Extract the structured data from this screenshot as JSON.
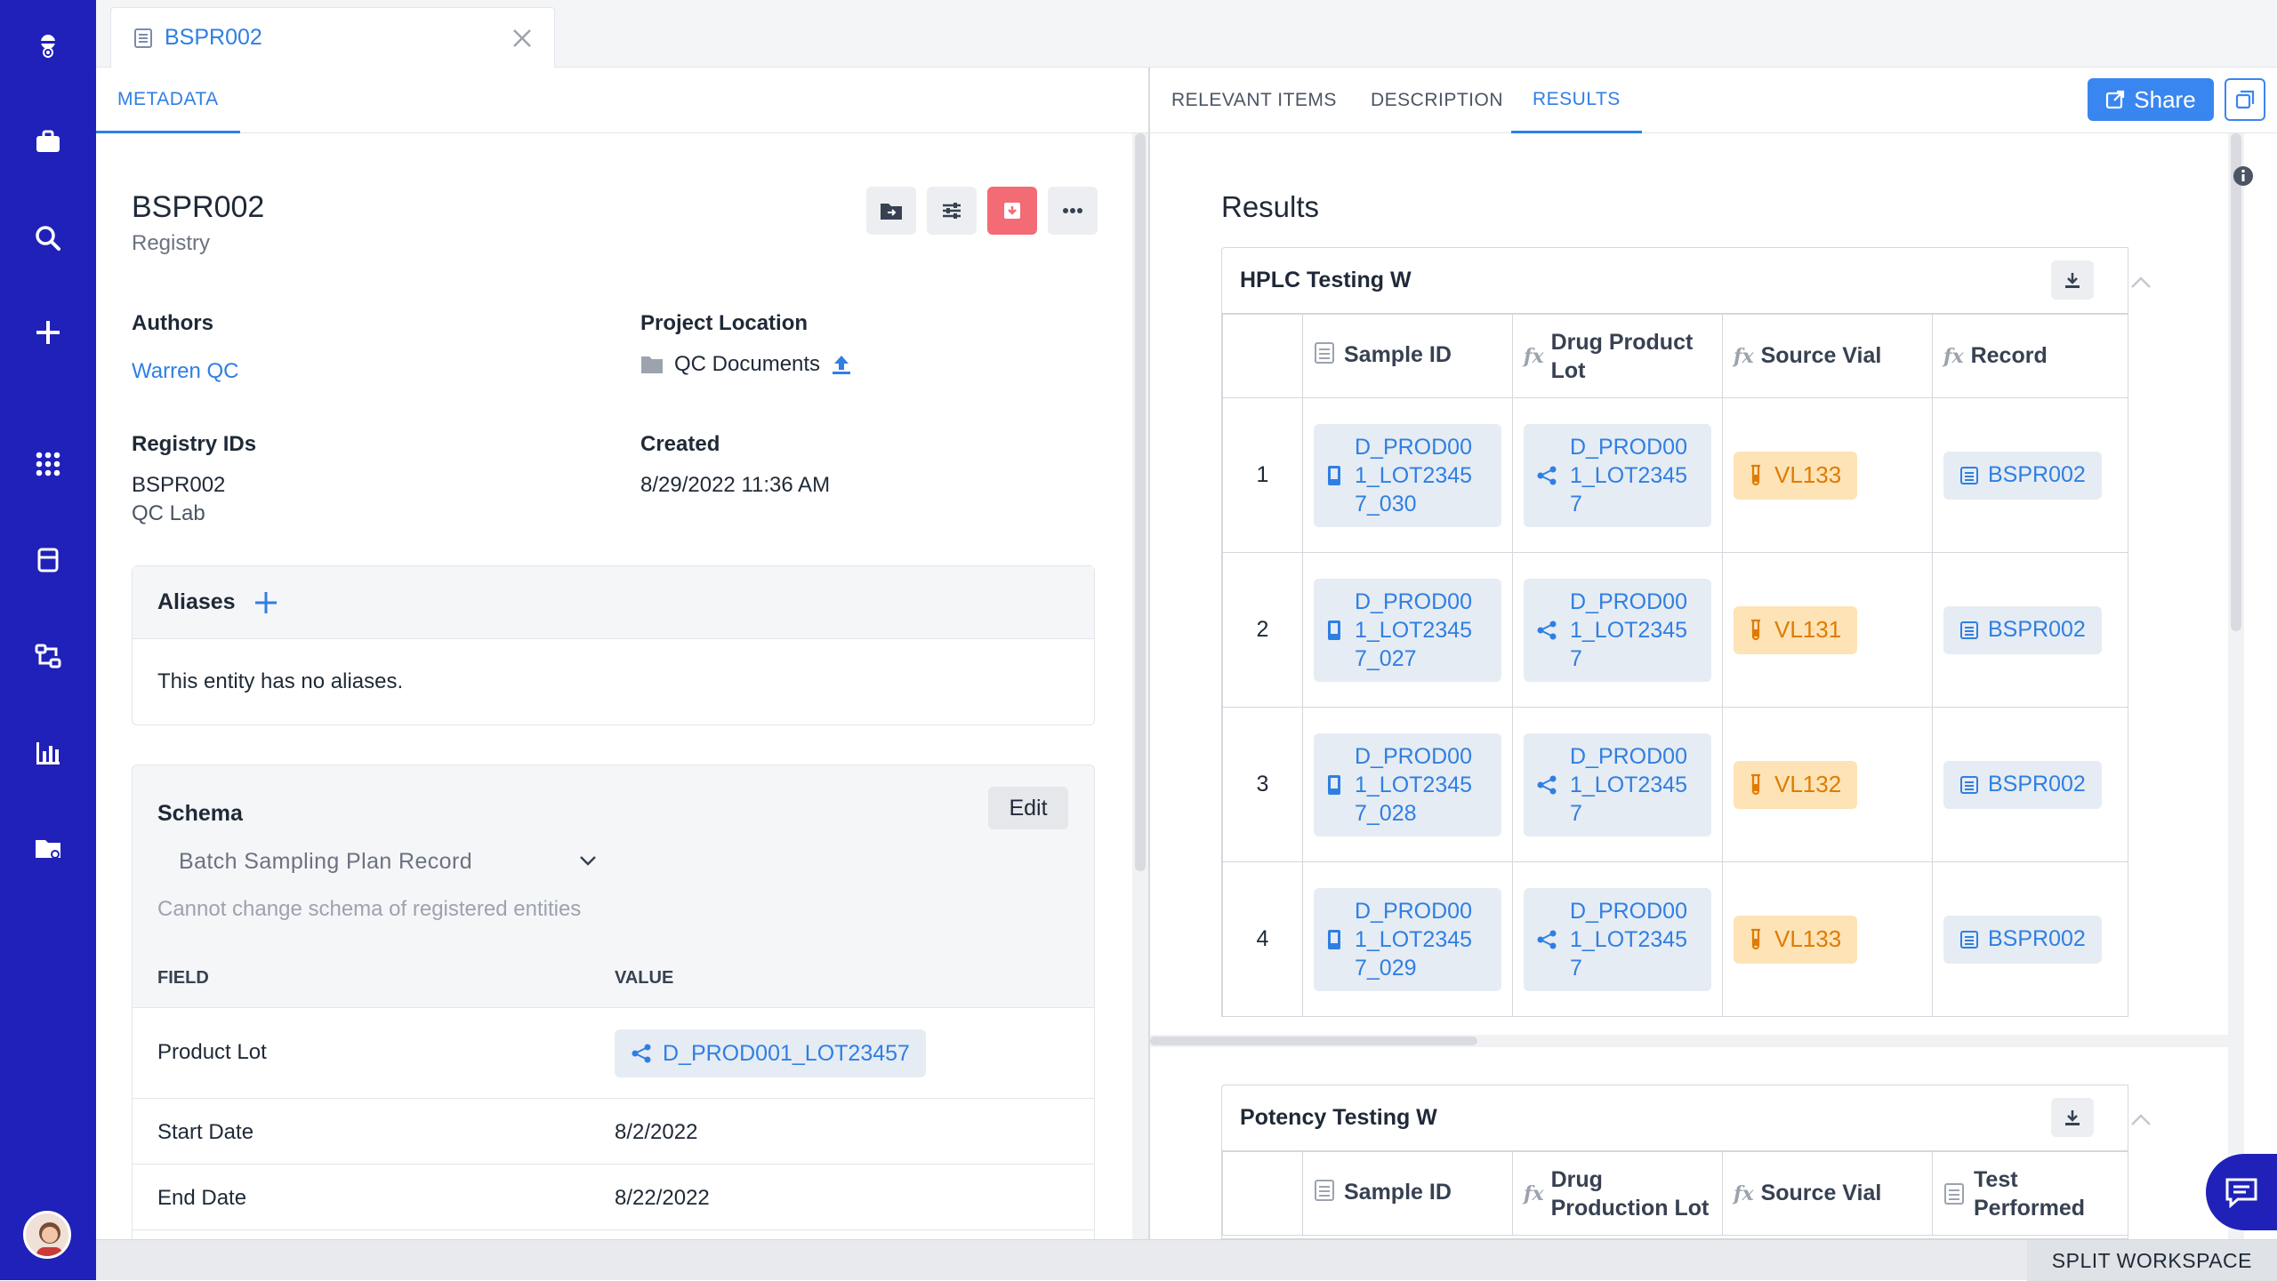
{
  "tab": {
    "title": "BSPR002"
  },
  "left_tabs": {
    "metadata": "METADATA"
  },
  "entity": {
    "title": "BSPR002",
    "subtitle": "Registry"
  },
  "meta": {
    "authors_label": "Authors",
    "authors_value": "Warren QC",
    "project_label": "Project Location",
    "project_value": "QC Documents",
    "registry_label": "Registry IDs",
    "registry_id": "BSPR002",
    "registry_lab": "QC Lab",
    "created_label": "Created",
    "created_value": "8/29/2022 11:36 AM"
  },
  "aliases": {
    "label": "Aliases",
    "empty": "This entity has no aliases."
  },
  "schema": {
    "label": "Schema",
    "edit": "Edit",
    "selected": "Batch Sampling Plan Record",
    "note": "Cannot change schema of registered entities",
    "field_header": "FIELD",
    "value_header": "VALUE",
    "rows": [
      {
        "field": "Product Lot",
        "value": "D_PROD001_LOT23457"
      },
      {
        "field": "Start Date",
        "value": "8/2/2022"
      },
      {
        "field": "End Date",
        "value": "8/22/2022"
      }
    ]
  },
  "right_tabs": {
    "relevant": "RELEVANT ITEMS",
    "description": "DESCRIPTION",
    "results": "RESULTS"
  },
  "share": "Share",
  "results": {
    "title": "Results",
    "hplc": {
      "title": "HPLC Testing W",
      "headers": [
        "Sample ID",
        "Drug Product Lot",
        "Source Vial",
        "Record"
      ],
      "rows": [
        {
          "n": "1",
          "sample": "D_PROD001_LOT23457_030",
          "lot": "D_PROD001_LOT23457",
          "vial": "VL133",
          "record": "BSPR002"
        },
        {
          "n": "2",
          "sample": "D_PROD001_LOT23457_027",
          "lot": "D_PROD001_LOT23457",
          "vial": "VL131",
          "record": "BSPR002"
        },
        {
          "n": "3",
          "sample": "D_PROD001_LOT23457_028",
          "lot": "D_PROD001_LOT23457",
          "vial": "VL132",
          "record": "BSPR002"
        },
        {
          "n": "4",
          "sample": "D_PROD001_LOT23457_029",
          "lot": "D_PROD001_LOT23457",
          "vial": "VL133",
          "record": "BSPR002"
        }
      ]
    },
    "potency": {
      "title": "Potency Testing W",
      "headers": [
        "Sample ID",
        "Drug Production Lot",
        "Source Vial",
        "Test Performed"
      ]
    }
  },
  "bottom": {
    "split": "SPLIT WORKSPACE"
  },
  "colors": {
    "nav": "#1f21b8",
    "accent": "#2f7fe3",
    "danger": "#f26b75",
    "vial": "#fde3b5"
  }
}
